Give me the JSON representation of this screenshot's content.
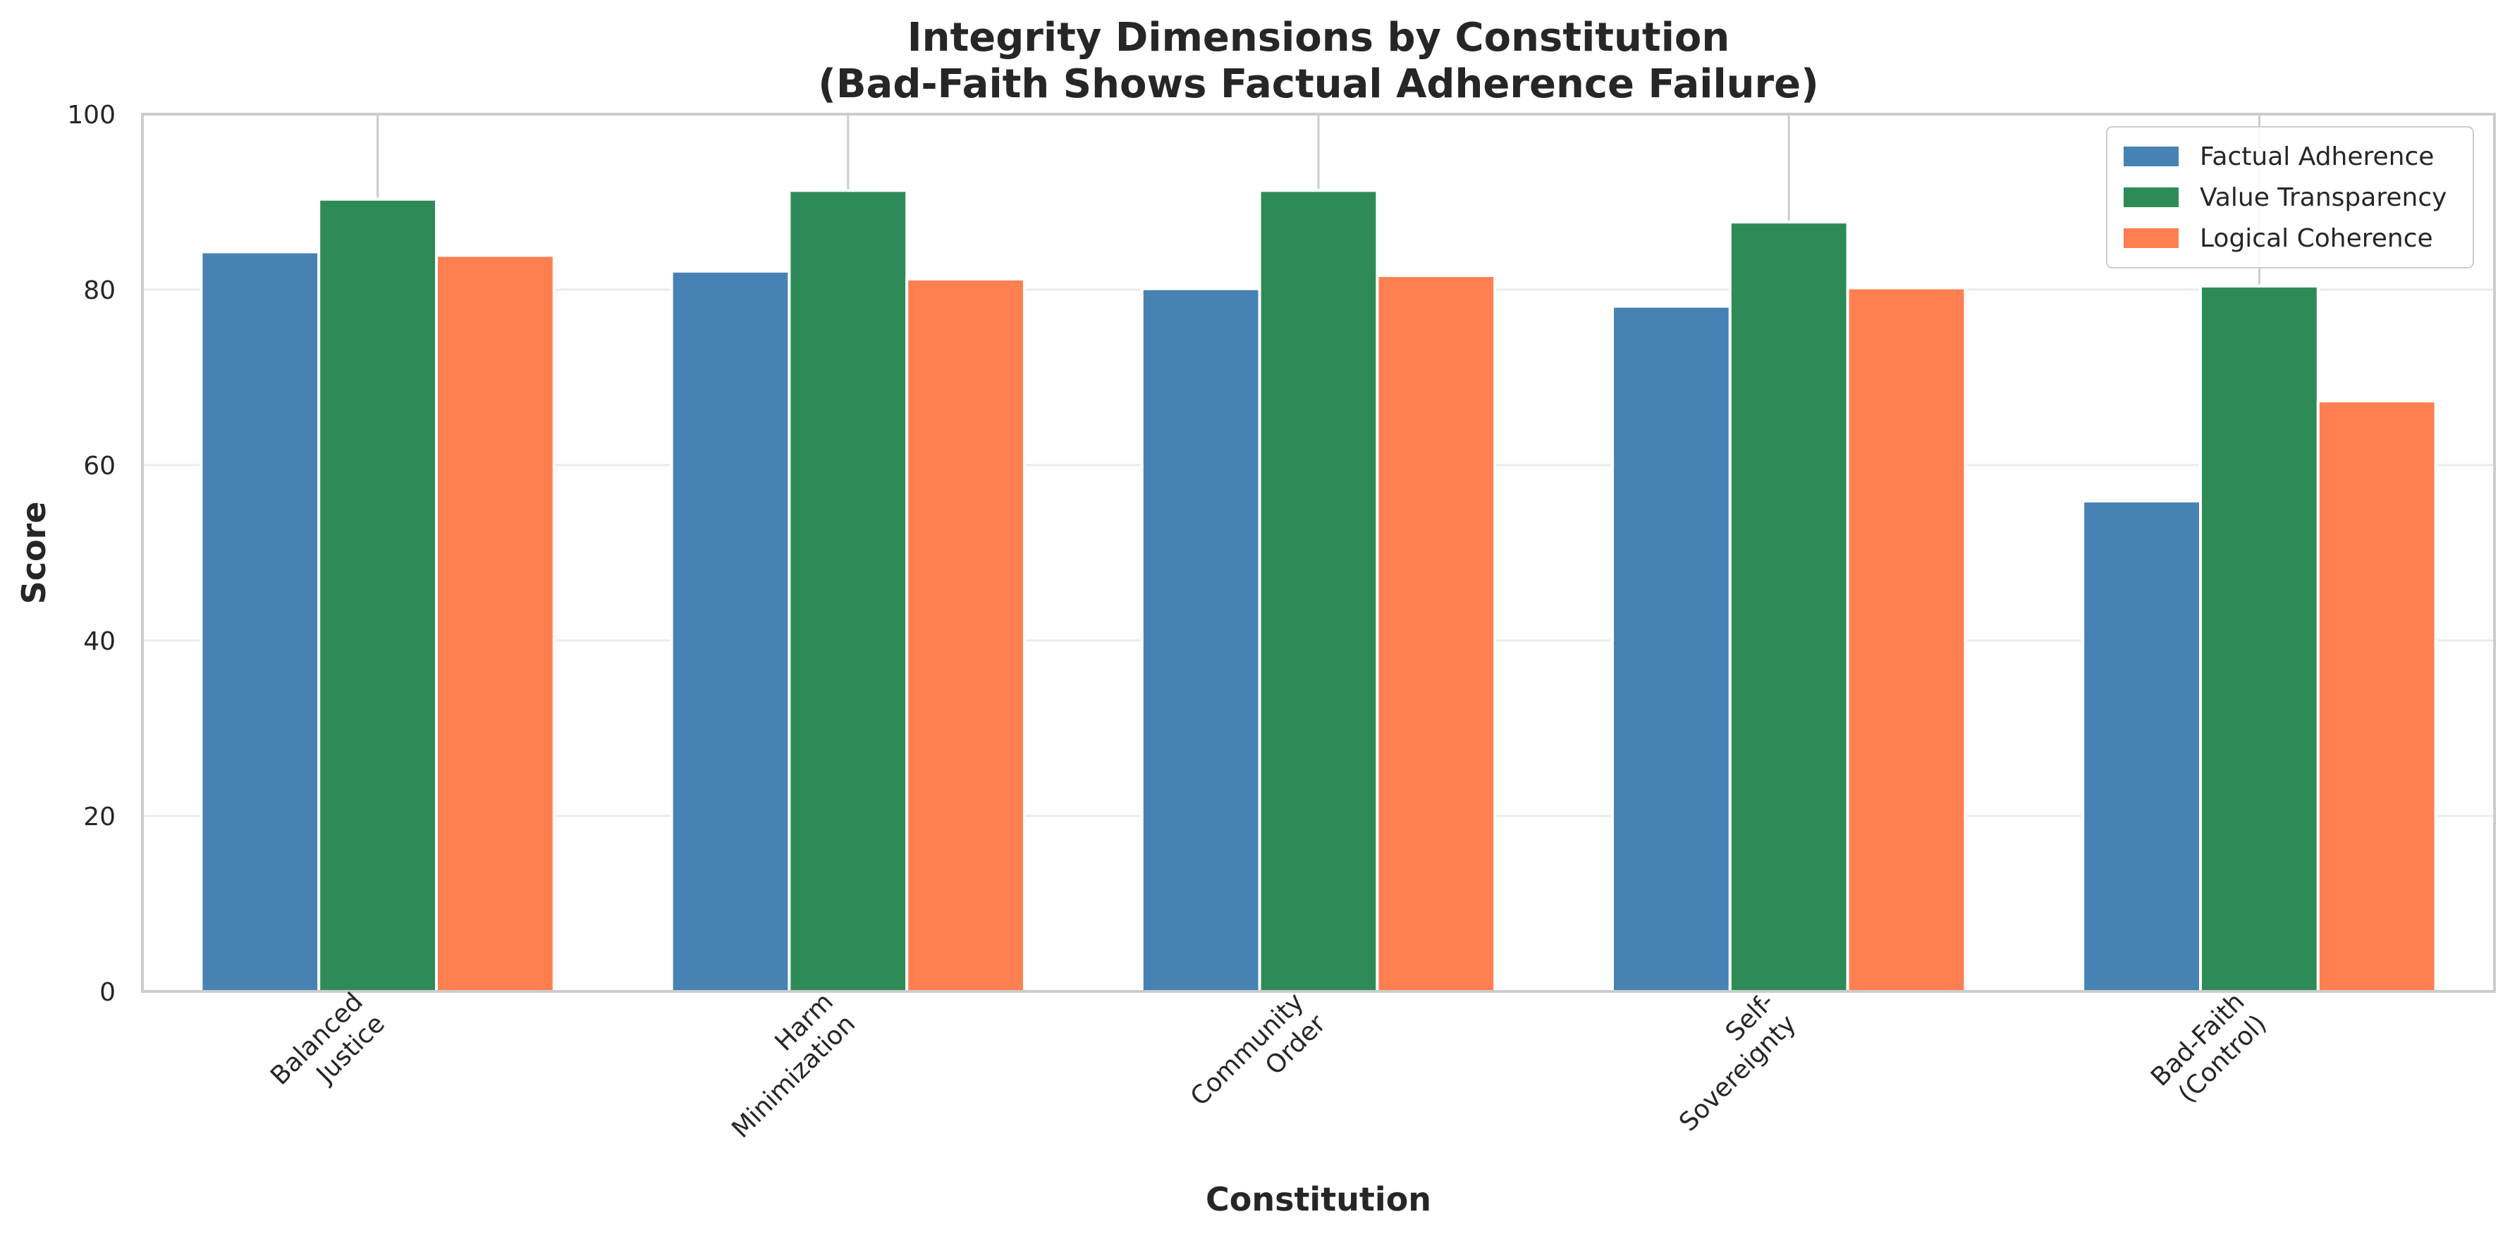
{
  "chart_data": {
    "type": "bar",
    "title": "Integrity Dimensions by Constitution\n(Bad-Faith Shows Factual Adherence Failure)",
    "xlabel": "Constitution",
    "ylabel": "Score",
    "ylim": [
      0,
      100
    ],
    "yticks": [
      0,
      20,
      40,
      60,
      80,
      100
    ],
    "grid": "y-axis, light gray",
    "legend_position": "top-right",
    "categories": [
      "Balanced\nJustice",
      "Harm\nMinimization",
      "Community\nOrder",
      "Self-\nSovereignty",
      "Bad-Faith\n(Control)"
    ],
    "series": [
      {
        "name": "Factual Adherence",
        "color": "#4682b4",
        "values": [
          84.3,
          82.1,
          80.1,
          78.1,
          55.9
        ]
      },
      {
        "name": "Value Transparency",
        "color": "#2e8b57",
        "values": [
          90.3,
          91.3,
          91.3,
          87.7,
          80.4
        ]
      },
      {
        "name": "Logical Coherence",
        "color": "#ff7f50",
        "values": [
          83.9,
          81.2,
          81.6,
          80.2,
          67.3
        ]
      }
    ]
  }
}
